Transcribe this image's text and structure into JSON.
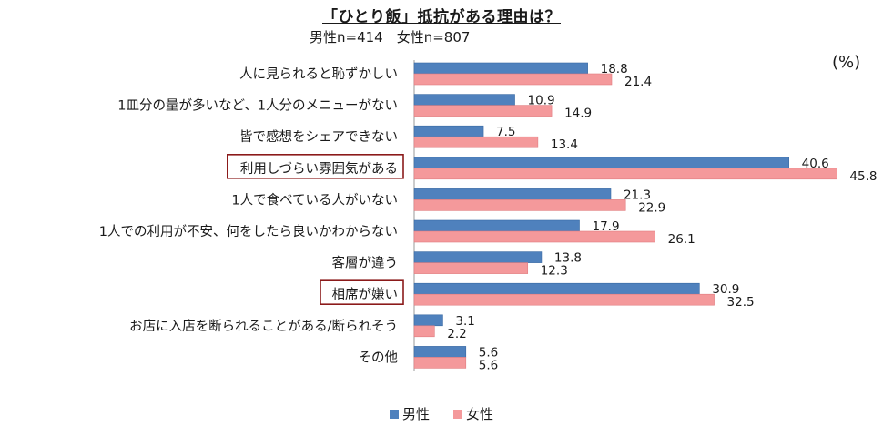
{
  "header": {
    "title": "「ひとり飯」抵抗がある理由は？",
    "subtitle": "男性n=414　女性n=807",
    "unit": "(%)"
  },
  "chart_data": {
    "type": "bar",
    "orientation": "horizontal",
    "title": "「ひとり飯」抵抗がある理由は？",
    "subtitle": "男性n=414　女性n=807",
    "unit": "(%)",
    "categories": [
      "人に見られると恥ずかしい",
      "1皿分の量が多いなど、1人分のメニューがない",
      "皆で感想をシェアできない",
      "利用しづらい雰囲気がある",
      "1人で食べている人がいない",
      "1人での利用が不安、何をしたら良いかわからない",
      "客層が違う",
      "相席が嫌い",
      "お店に入店を断られることがある/断られそう",
      "その他"
    ],
    "highlighted_categories": [
      "利用しづらい雰囲気がある",
      "相席が嫌い"
    ],
    "series": [
      {
        "name": "男性",
        "color": "#4f81bd",
        "values": [
          18.8,
          10.9,
          7.5,
          40.6,
          21.3,
          17.9,
          13.8,
          30.9,
          3.1,
          5.6
        ]
      },
      {
        "name": "女性",
        "color": "#f4999b",
        "values": [
          21.4,
          14.9,
          13.4,
          45.8,
          22.9,
          26.1,
          12.3,
          32.5,
          2.2,
          5.6
        ]
      }
    ],
    "xlim": [
      0,
      50
    ],
    "grid": false,
    "legend_position": "bottom",
    "highlight_color": "#8b1a1a"
  }
}
